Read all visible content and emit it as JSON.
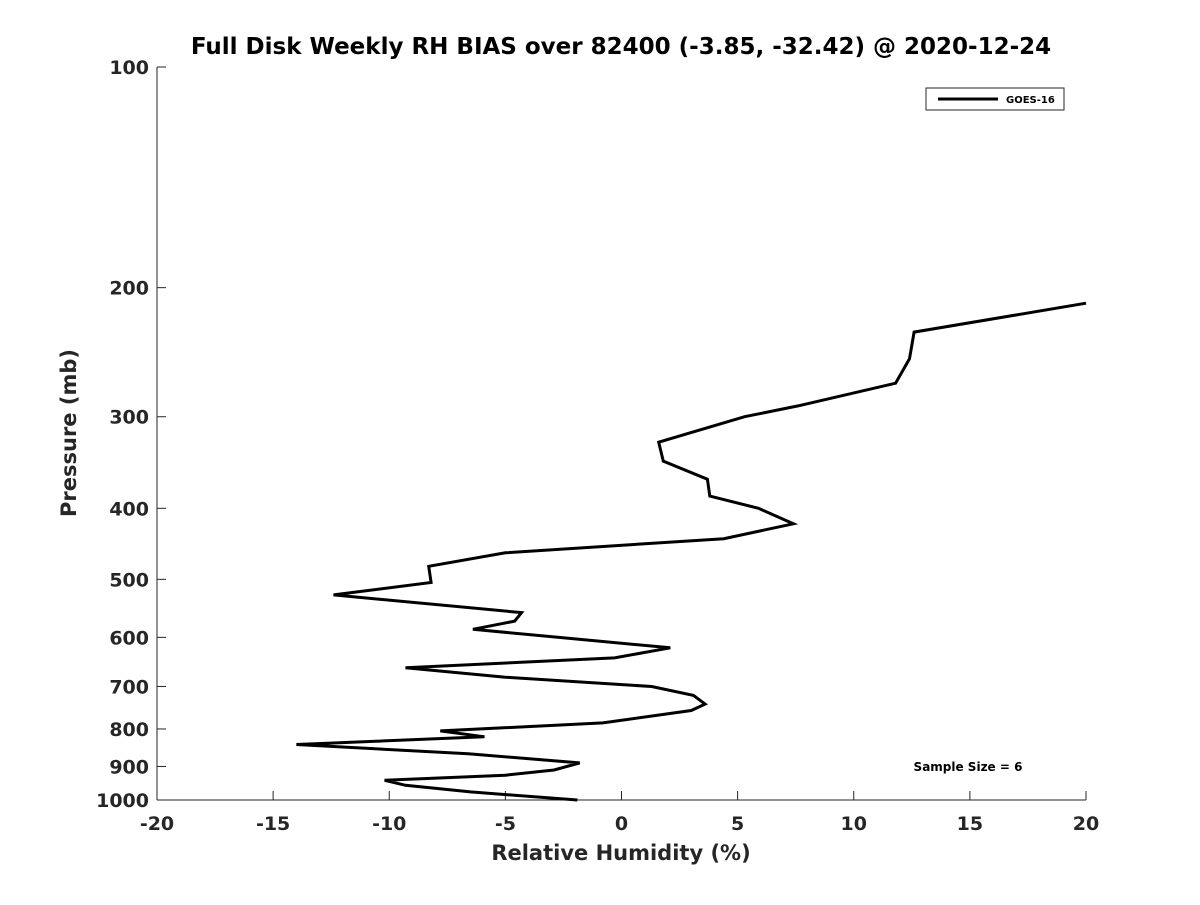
{
  "chart_data": {
    "type": "line",
    "title": "Full Disk Weekly RH BIAS over 82400 (-3.85, -32.42) @ 2020-12-24",
    "xlabel": "Relative Humidity (%)",
    "ylabel": "Pressure (mb)",
    "xlim": [
      -20,
      20
    ],
    "ylim": [
      100,
      1000
    ],
    "y_scale": "log",
    "y_reversed": true,
    "grid": false,
    "legend_position": "top-right",
    "xticks": [
      -20,
      -15,
      -10,
      -5,
      0,
      5,
      10,
      15,
      20
    ],
    "yticks": [
      100,
      200,
      300,
      400,
      500,
      600,
      700,
      800,
      900,
      1000
    ],
    "series": [
      {
        "name": "GOES-16",
        "color": "#000000",
        "points": [
          {
            "x": 20.0,
            "y": 210
          },
          {
            "x": 12.6,
            "y": 230
          },
          {
            "x": 12.4,
            "y": 250
          },
          {
            "x": 11.8,
            "y": 270
          },
          {
            "x": 7.6,
            "y": 290
          },
          {
            "x": 5.3,
            "y": 300
          },
          {
            "x": 1.6,
            "y": 325
          },
          {
            "x": 1.8,
            "y": 345
          },
          {
            "x": 3.7,
            "y": 365
          },
          {
            "x": 3.8,
            "y": 385
          },
          {
            "x": 5.9,
            "y": 400
          },
          {
            "x": 7.4,
            "y": 420
          },
          {
            "x": 4.4,
            "y": 440
          },
          {
            "x": -5.0,
            "y": 460
          },
          {
            "x": -8.3,
            "y": 480
          },
          {
            "x": -8.2,
            "y": 505
          },
          {
            "x": -12.4,
            "y": 525
          },
          {
            "x": -4.3,
            "y": 555
          },
          {
            "x": -4.6,
            "y": 570
          },
          {
            "x": -6.4,
            "y": 585
          },
          {
            "x": 2.1,
            "y": 620
          },
          {
            "x": -0.3,
            "y": 640
          },
          {
            "x": -9.3,
            "y": 660
          },
          {
            "x": -5.0,
            "y": 680
          },
          {
            "x": 1.3,
            "y": 700
          },
          {
            "x": 3.1,
            "y": 720
          },
          {
            "x": 3.6,
            "y": 740
          },
          {
            "x": 3.0,
            "y": 755
          },
          {
            "x": -0.8,
            "y": 785
          },
          {
            "x": -7.8,
            "y": 805
          },
          {
            "x": -5.9,
            "y": 820
          },
          {
            "x": -14.0,
            "y": 840
          },
          {
            "x": -6.6,
            "y": 865
          },
          {
            "x": -1.8,
            "y": 890
          },
          {
            "x": -2.9,
            "y": 910
          },
          {
            "x": -5.0,
            "y": 925
          },
          {
            "x": -10.2,
            "y": 940
          },
          {
            "x": -9.3,
            "y": 955
          },
          {
            "x": -6.5,
            "y": 975
          },
          {
            "x": -1.9,
            "y": 1000
          }
        ]
      }
    ],
    "annotations": [
      "Sample Size = 6"
    ]
  }
}
